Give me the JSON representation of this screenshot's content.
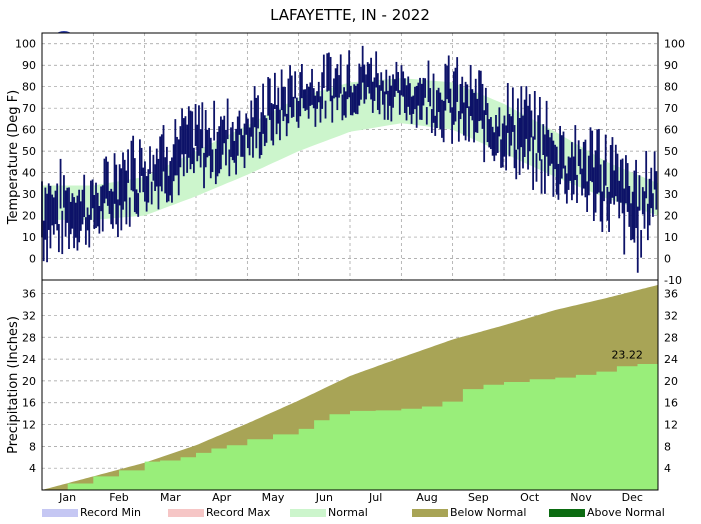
{
  "chart_data": [
    {
      "type": "line",
      "title": "LAFAYETTE, IN - 2022",
      "ylabel": "Temperature (Deg F)",
      "ylim": [
        -10,
        105
      ],
      "yticks_left": [
        0,
        10,
        20,
        30,
        40,
        50,
        60,
        70,
        80,
        90,
        100
      ],
      "yticks_right": [
        -10,
        0,
        10,
        20,
        30,
        40,
        50,
        60,
        70,
        80,
        90,
        100
      ],
      "grid": true,
      "month_labels": [
        "Jan",
        "Feb",
        "Mar",
        "Apr",
        "May",
        "Jun",
        "Jul",
        "Aug",
        "Sep",
        "Oct",
        "Nov",
        "Dec"
      ],
      "x_month_positions": [
        0.5,
        1.5,
        2.5,
        3.5,
        4.5,
        5.5,
        6.5,
        7.5,
        8.5,
        9.5,
        10.5,
        11.5
      ],
      "normal_band": {
        "x_month": [
          0,
          1,
          2,
          3,
          4,
          5,
          6,
          7,
          8,
          9,
          10,
          11,
          12
        ],
        "high": [
          34,
          34,
          38,
          50,
          62,
          75,
          82,
          84,
          82,
          72,
          59,
          45,
          35
        ],
        "low": [
          18,
          18,
          20,
          29,
          39,
          50,
          59,
          63,
          60,
          49,
          38,
          28,
          20
        ]
      },
      "observed_range": {
        "x_month": [
          0,
          0.5,
          1,
          1.5,
          2,
          2.5,
          3,
          3.5,
          4,
          4.5,
          5,
          5.5,
          6,
          6.5,
          7,
          7.5,
          8,
          8.5,
          9,
          9.5,
          10,
          10.5,
          11,
          11.3,
          11.6,
          12
        ],
        "high": [
          50,
          45,
          40,
          55,
          62,
          68,
          72,
          75,
          78,
          86,
          92,
          95,
          100,
          98,
          90,
          92,
          95,
          88,
          82,
          80,
          70,
          62,
          60,
          55,
          45,
          57
        ],
        "low": [
          -5,
          0,
          5,
          10,
          20,
          25,
          30,
          35,
          40,
          50,
          60,
          62,
          65,
          66,
          62,
          60,
          50,
          45,
          40,
          30,
          25,
          20,
          10,
          0,
          -8,
          20
        ]
      },
      "color_observed": "#0d1268",
      "color_normal": "#ccf5cc"
    },
    {
      "type": "area",
      "ylabel": "Precipitation (Inches)",
      "ylim": [
        0,
        38.5
      ],
      "yticks": [
        4,
        8,
        12,
        16,
        20,
        24,
        28,
        32,
        36
      ],
      "grid": true,
      "annotation": "23.22",
      "normal_cumulative": {
        "x_month": [
          0,
          1,
          2,
          3,
          4,
          5,
          6,
          7,
          8,
          9,
          10,
          11,
          12
        ],
        "values": [
          0,
          2.5,
          5.0,
          8.2,
          12.2,
          16.4,
          20.9,
          24.3,
          27.6,
          30.2,
          33.0,
          35.2,
          37.6
        ]
      },
      "observed_cumulative": {
        "x_month": [
          0,
          0.5,
          1.0,
          1.5,
          2.0,
          2.3,
          2.7,
          3.0,
          3.3,
          3.6,
          4.0,
          4.5,
          5.0,
          5.3,
          5.6,
          6.0,
          6.5,
          7.0,
          7.4,
          7.8,
          8.2,
          8.6,
          9.0,
          9.5,
          10.0,
          10.4,
          10.8,
          11.2,
          11.6,
          12.0
        ],
        "values": [
          0,
          1.2,
          2.5,
          3.6,
          5.2,
          5.4,
          6.0,
          6.8,
          7.6,
          8.2,
          9.3,
          10.2,
          11.2,
          12.8,
          13.9,
          14.5,
          14.6,
          14.9,
          15.3,
          16.2,
          18.5,
          19.3,
          19.8,
          20.3,
          20.6,
          21.1,
          21.7,
          22.7,
          23.1,
          23.22
        ]
      },
      "color_below_normal": "#a8a456",
      "color_observed": "#99ee7a"
    }
  ],
  "legend": [
    {
      "label": "Record Min",
      "color": "#c5c7f3"
    },
    {
      "label": "Record Max",
      "color": "#f6c6c6"
    },
    {
      "label": "Normal",
      "color": "#ccf5cc"
    },
    {
      "label": "Below Normal",
      "color": "#a8a456"
    },
    {
      "label": "Above Normal",
      "color": "#0b6b11"
    }
  ],
  "logo_icon": "noaa-logo-icon"
}
